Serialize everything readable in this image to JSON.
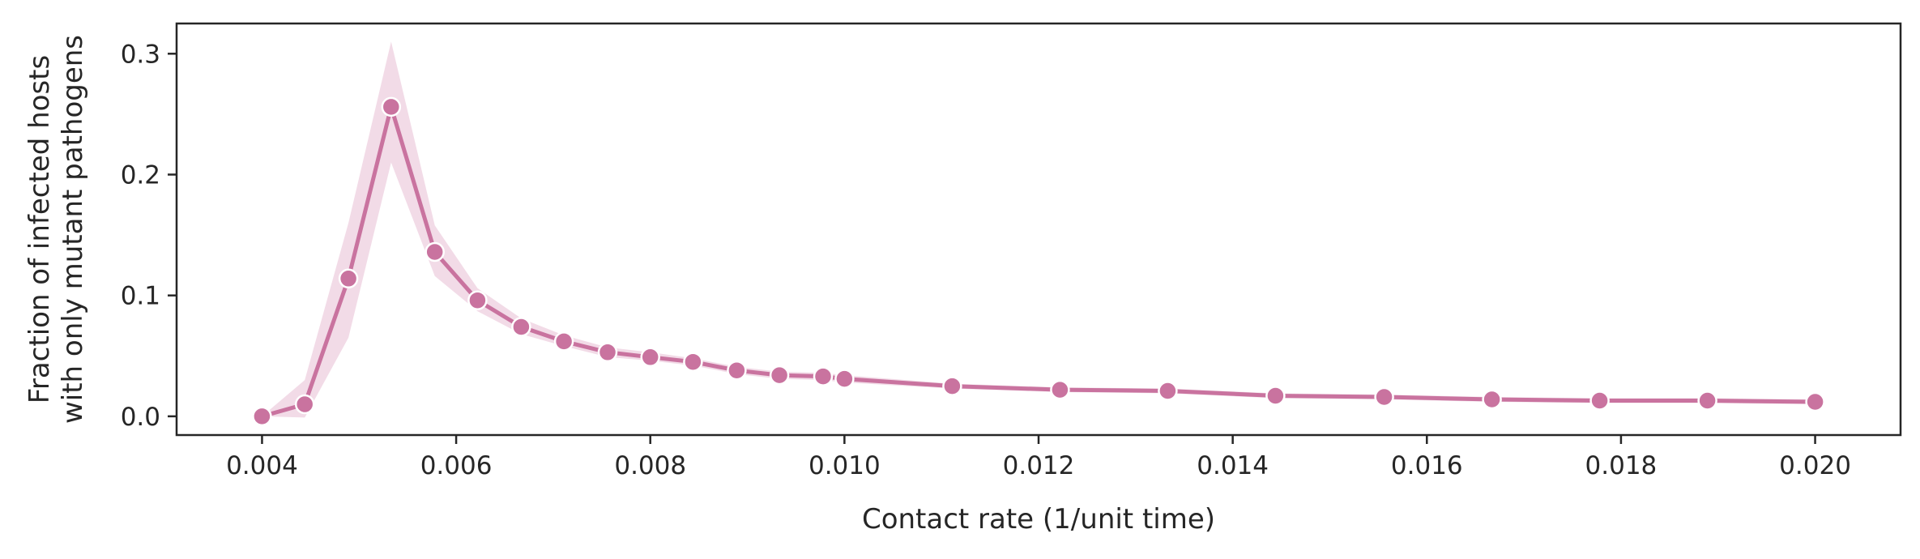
{
  "chart_data": {
    "type": "line",
    "xlabel": "Contact rate (1/unit time)",
    "ylabel_lines": [
      "Fraction of infected hosts",
      "with only mutant pathogens"
    ],
    "xlim": [
      0.00312,
      0.02088
    ],
    "ylim": [
      -0.0155,
      0.325
    ],
    "xticks": [
      0.004,
      0.006,
      0.008,
      0.01,
      0.012,
      0.014,
      0.016,
      0.018,
      0.02
    ],
    "xtick_labels": [
      "0.004",
      "0.006",
      "0.008",
      "0.010",
      "0.012",
      "0.014",
      "0.016",
      "0.018",
      "0.020"
    ],
    "yticks": [
      0.0,
      0.1,
      0.2,
      0.3
    ],
    "ytick_labels": [
      "0.0",
      "0.1",
      "0.2",
      "0.3"
    ],
    "grid": false,
    "series": [
      {
        "color": "#c9739f",
        "band_color": "#e7bdd3",
        "marker": "circle",
        "x": [
          0.004,
          0.00444,
          0.00489,
          0.00533,
          0.00578,
          0.00622,
          0.00667,
          0.00711,
          0.00756,
          0.008,
          0.00844,
          0.00889,
          0.00933,
          0.00978,
          0.01,
          0.01111,
          0.01222,
          0.01333,
          0.01444,
          0.01556,
          0.01667,
          0.01778,
          0.01889,
          0.02
        ],
        "y": [
          0.0,
          0.01,
          0.114,
          0.256,
          0.136,
          0.096,
          0.074,
          0.062,
          0.053,
          0.049,
          0.045,
          0.038,
          0.034,
          0.033,
          0.031,
          0.025,
          0.022,
          0.021,
          0.017,
          0.016,
          0.014,
          0.013,
          0.013,
          0.012
        ],
        "y_lower": [
          0.0,
          -0.001,
          0.065,
          0.21,
          0.116,
          0.087,
          0.068,
          0.058,
          0.049,
          0.046,
          0.042,
          0.035,
          0.031,
          0.03,
          0.028,
          0.023,
          0.02,
          0.019,
          0.015,
          0.014,
          0.012,
          0.011,
          0.011,
          0.01
        ],
        "y_upper": [
          0.0,
          0.03,
          0.16,
          0.31,
          0.158,
          0.106,
          0.081,
          0.067,
          0.057,
          0.053,
          0.048,
          0.041,
          0.037,
          0.036,
          0.034,
          0.027,
          0.024,
          0.023,
          0.019,
          0.018,
          0.016,
          0.015,
          0.015,
          0.014
        ]
      }
    ]
  }
}
